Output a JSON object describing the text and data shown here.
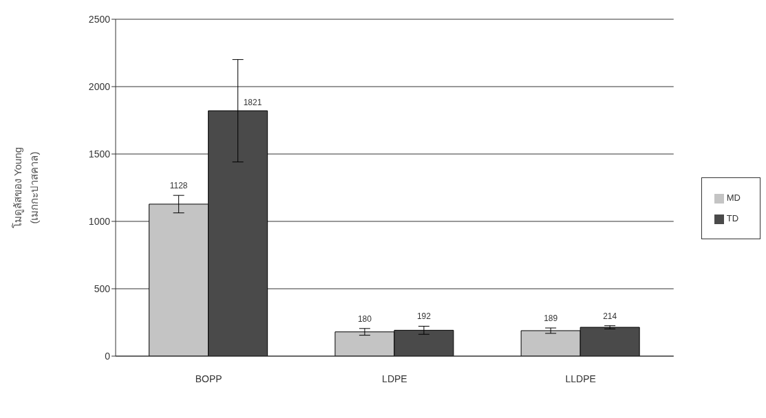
{
  "chart_data": {
    "type": "bar",
    "ylabel": "โมดูลัสของ Young\n(เมกกะปาสคาล)",
    "categories": [
      "BOPP",
      "LDPE",
      "LLDPE"
    ],
    "series": [
      {
        "name": "MD",
        "color": "#c4c4c4",
        "values": [
          1128,
          180,
          189
        ],
        "errors": [
          65,
          25,
          20
        ]
      },
      {
        "name": "TD",
        "color": "#4a4a4a",
        "values": [
          1821,
          192,
          214
        ],
        "errors": [
          380,
          30,
          12
        ]
      }
    ],
    "ylim": [
      0,
      2500
    ],
    "yticks": [
      0,
      500,
      1000,
      1500,
      2000,
      2500
    ],
    "grid": "y",
    "legend": "right",
    "data_labels": true
  }
}
